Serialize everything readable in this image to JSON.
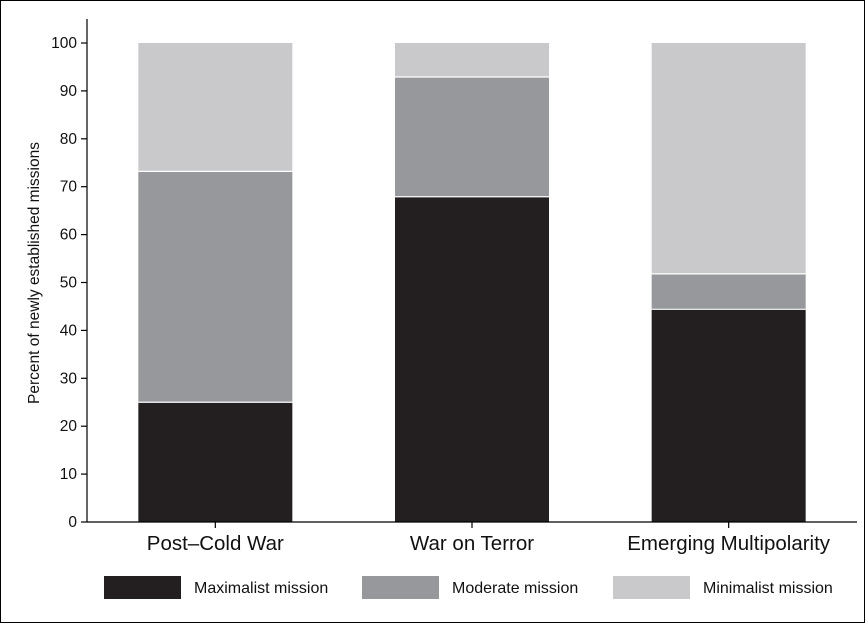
{
  "chart_data": {
    "type": "bar",
    "stacked": true,
    "categories": [
      "Post–Cold War",
      "War on Terror",
      "Emerging Multipolarity"
    ],
    "series": [
      {
        "name": "Maximalist mission",
        "values": [
          25,
          67.9,
          44.4
        ],
        "color": "#231f20"
      },
      {
        "name": "Moderate mission",
        "values": [
          48.2,
          25,
          7.4
        ],
        "color": "#97989b"
      },
      {
        "name": "Minimalist mission",
        "values": [
          26.8,
          7.1,
          48.2
        ],
        "color": "#c9c9cb"
      }
    ],
    "ylabel": "Percent of newly established missions",
    "ylim": [
      0,
      100
    ],
    "yticks": [
      "0",
      "10",
      "20",
      "30",
      "40",
      "50",
      "60",
      "70",
      "80",
      "90",
      "100"
    ],
    "grid": false,
    "legend": "bottom"
  }
}
